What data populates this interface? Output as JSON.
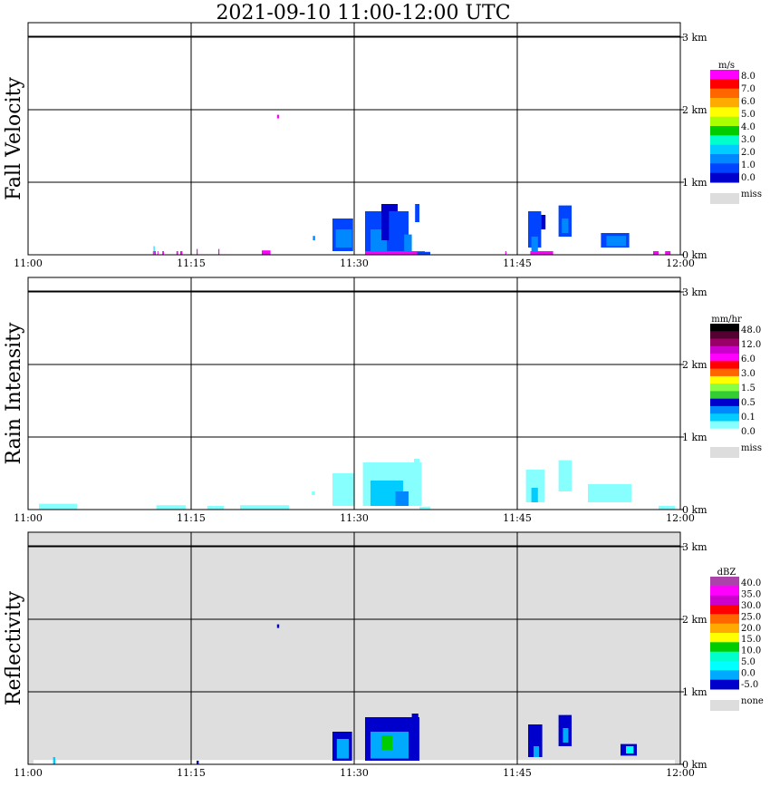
{
  "title": "2021-09-10   11:00-12:00 UTC",
  "x_axis": {
    "ticks": [
      "11:00",
      "11:15",
      "11:30",
      "11:45",
      "12:00"
    ],
    "range": [
      "11:00",
      "12:00"
    ]
  },
  "y_axis": {
    "ticks": [
      "0 km",
      "1 km",
      "2 km",
      "3 km"
    ],
    "range_km": [
      0,
      3.2
    ]
  },
  "colors": {
    "axis": "#000000",
    "reflectivity_background": "#dedede",
    "miss": "#dddddd"
  },
  "chart_data": [
    {
      "type": "heatmap",
      "title": "Fall Velocity",
      "ylabel": "Fall Velocity",
      "background": "#ffffff",
      "grid": true,
      "colorbar": {
        "unit": "m/s",
        "labels": [
          "8.0",
          "7.0",
          "6.0",
          "5.0",
          "4.0",
          "3.0",
          "2.0",
          "1.0",
          "0.0"
        ],
        "colors": [
          "#ff00ff",
          "#ff0000",
          "#ff6600",
          "#ffaa00",
          "#ffff00",
          "#aaff00",
          "#00cc00",
          "#00ffcc",
          "#00ccff",
          "#0088ff",
          "#0044ff",
          "#0000cc"
        ],
        "missing_label": "miss",
        "missing_color": "#dddddd"
      },
      "blobs": [
        {
          "t": [
            11.48,
            11.55
          ],
          "h": [
            0.0,
            0.05
          ],
          "color": "#ff00ff"
        },
        {
          "t": [
            11.55,
            11.6
          ],
          "h": [
            0.02,
            0.12
          ],
          "color": "#00ccff"
        },
        {
          "t": [
            11.6,
            11.75
          ],
          "h": [
            0.0,
            0.05
          ],
          "color": "#ff00ff"
        },
        {
          "t": [
            11.9,
            11.97
          ],
          "h": [
            0.0,
            0.05
          ],
          "color": "#ff00ff"
        },
        {
          "t": [
            12.35,
            12.5
          ],
          "h": [
            0.0,
            0.05
          ],
          "color": "#ff00ff"
        },
        {
          "t": [
            13.65,
            13.8
          ],
          "h": [
            0.0,
            0.05
          ],
          "color": "#ff00ff"
        },
        {
          "t": [
            14.0,
            14.2
          ],
          "h": [
            0.0,
            0.05
          ],
          "color": "#ff00ff"
        },
        {
          "t": [
            15.5,
            15.6
          ],
          "h": [
            0.0,
            0.08
          ],
          "color": "#ff00ff"
        },
        {
          "t": [
            17.5,
            17.6
          ],
          "h": [
            0.0,
            0.08
          ],
          "color": "#ff00ff"
        },
        {
          "t": [
            21.5,
            22.3
          ],
          "h": [
            0.0,
            0.06
          ],
          "color": "#ff00ff"
        },
        {
          "t": [
            22.9,
            23.1
          ],
          "h": [
            1.88,
            1.93
          ],
          "color": "#ff00ff"
        },
        {
          "t": [
            26.2,
            26.4
          ],
          "h": [
            0.2,
            0.26
          ],
          "color": "#0088ff"
        },
        {
          "t": [
            28.0,
            29.9
          ],
          "h": [
            0.05,
            0.5
          ],
          "color": "#0044ff"
        },
        {
          "t": [
            28.3,
            29.8
          ],
          "h": [
            0.1,
            0.35
          ],
          "color": "#0088ff"
        },
        {
          "t": [
            31.0,
            33.5
          ],
          "h": [
            0.05,
            0.6
          ],
          "color": "#0044ff"
        },
        {
          "t": [
            31.5,
            33.0
          ],
          "h": [
            0.05,
            0.35
          ],
          "color": "#0088ff"
        },
        {
          "t": [
            32.5,
            34.0
          ],
          "h": [
            0.2,
            0.7
          ],
          "color": "#0000cc"
        },
        {
          "t": [
            33.2,
            35.0
          ],
          "h": [
            0.05,
            0.6
          ],
          "color": "#0044ff"
        },
        {
          "t": [
            34.6,
            35.3
          ],
          "h": [
            0.05,
            0.28
          ],
          "color": "#0088ff"
        },
        {
          "t": [
            35.6,
            36.0
          ],
          "h": [
            0.45,
            0.7
          ],
          "color": "#0044ff"
        },
        {
          "t": [
            31.0,
            36.5
          ],
          "h": [
            0.0,
            0.05
          ],
          "color": "#ff00ff"
        },
        {
          "t": [
            35.8,
            37.0
          ],
          "h": [
            0.0,
            0.04
          ],
          "color": "#0044ff"
        },
        {
          "t": [
            43.9,
            44.0
          ],
          "h": [
            0.0,
            0.05
          ],
          "color": "#ff00ff"
        },
        {
          "t": [
            46.0,
            47.2
          ],
          "h": [
            0.1,
            0.6
          ],
          "color": "#0044ff"
        },
        {
          "t": [
            46.3,
            46.9
          ],
          "h": [
            0.05,
            0.25
          ],
          "color": "#0088ff"
        },
        {
          "t": [
            47.2,
            47.6
          ],
          "h": [
            0.35,
            0.55
          ],
          "color": "#0000cc"
        },
        {
          "t": [
            48.8,
            50.0
          ],
          "h": [
            0.25,
            0.68
          ],
          "color": "#0044ff"
        },
        {
          "t": [
            49.1,
            49.7
          ],
          "h": [
            0.3,
            0.5
          ],
          "color": "#0088ff"
        },
        {
          "t": [
            46.2,
            48.3
          ],
          "h": [
            0.0,
            0.05
          ],
          "color": "#ff00ff"
        },
        {
          "t": [
            52.7,
            55.3
          ],
          "h": [
            0.1,
            0.3
          ],
          "color": "#0044ff"
        },
        {
          "t": [
            53.2,
            55.0
          ],
          "h": [
            0.12,
            0.26
          ],
          "color": "#0088ff"
        },
        {
          "t": [
            57.5,
            58.0
          ],
          "h": [
            0.0,
            0.05
          ],
          "color": "#ff00ff"
        },
        {
          "t": [
            58.6,
            59.1
          ],
          "h": [
            0.0,
            0.05
          ],
          "color": "#ff00ff"
        }
      ]
    },
    {
      "type": "heatmap",
      "title": "Rain Intensity",
      "ylabel": "Rain Intensity",
      "background": "#ffffff",
      "grid": true,
      "colorbar": {
        "unit": "mm/hr",
        "labels": [
          "48.0",
          "12.0",
          "6.0",
          "3.0",
          "1.5",
          "0.5",
          "0.1",
          "0.0"
        ],
        "colors": [
          "#000000",
          "#550033",
          "#990066",
          "#cc00cc",
          "#ff00ff",
          "#ff0000",
          "#ff6600",
          "#ffff00",
          "#88ff44",
          "#33cc33",
          "#0000cc",
          "#0088ff",
          "#00ccff",
          "#88ffff",
          "#ffffff"
        ],
        "missing_label": "miss",
        "missing_color": "#dddddd"
      },
      "blobs": [
        {
          "t": [
            1.0,
            4.5
          ],
          "h": [
            0.0,
            0.08
          ],
          "color": "#88ffff"
        },
        {
          "t": [
            11.8,
            14.5
          ],
          "h": [
            0.0,
            0.06
          ],
          "color": "#88ffff"
        },
        {
          "t": [
            16.5,
            18.0
          ],
          "h": [
            0.0,
            0.05
          ],
          "color": "#88ffff"
        },
        {
          "t": [
            19.5,
            24.0
          ],
          "h": [
            0.0,
            0.06
          ],
          "color": "#88ffff"
        },
        {
          "t": [
            26.1,
            26.4
          ],
          "h": [
            0.2,
            0.25
          ],
          "color": "#88ffff"
        },
        {
          "t": [
            28.0,
            30.0
          ],
          "h": [
            0.05,
            0.5
          ],
          "color": "#88ffff"
        },
        {
          "t": [
            30.8,
            36.2
          ],
          "h": [
            0.05,
            0.65
          ],
          "color": "#88ffff"
        },
        {
          "t": [
            31.5,
            34.5
          ],
          "h": [
            0.05,
            0.4
          ],
          "color": "#00ccff"
        },
        {
          "t": [
            33.8,
            35.0
          ],
          "h": [
            0.05,
            0.25
          ],
          "color": "#0088ff"
        },
        {
          "t": [
            35.5,
            36.0
          ],
          "h": [
            0.45,
            0.7
          ],
          "color": "#88ffff"
        },
        {
          "t": [
            36.0,
            37.0
          ],
          "h": [
            0.0,
            0.04
          ],
          "color": "#88ffff"
        },
        {
          "t": [
            45.8,
            47.5
          ],
          "h": [
            0.1,
            0.55
          ],
          "color": "#88ffff"
        },
        {
          "t": [
            46.3,
            46.9
          ],
          "h": [
            0.1,
            0.3
          ],
          "color": "#00ccff"
        },
        {
          "t": [
            48.8,
            50.0
          ],
          "h": [
            0.25,
            0.68
          ],
          "color": "#88ffff"
        },
        {
          "t": [
            51.5,
            55.5
          ],
          "h": [
            0.1,
            0.35
          ],
          "color": "#88ffff"
        },
        {
          "t": [
            58.0,
            59.5
          ],
          "h": [
            0.0,
            0.05
          ],
          "color": "#88ffff"
        }
      ]
    },
    {
      "type": "heatmap",
      "title": "Reflectivity",
      "ylabel": "Reflectivity",
      "background": "#dedede",
      "grid": true,
      "colorbar": {
        "unit": "dBZ",
        "labels": [
          "40.0",
          "35.0",
          "30.0",
          "25.0",
          "20.0",
          "15.0",
          "10.0",
          "5.0",
          "0.0",
          "-5.0"
        ],
        "colors": [
          "#aa44aa",
          "#ff00ff",
          "#cc00cc",
          "#ff0000",
          "#ff6600",
          "#ffaa00",
          "#ffff00",
          "#00cc00",
          "#00ffcc",
          "#00ffff",
          "#00aaff",
          "#0000cc"
        ],
        "missing_label": "none",
        "missing_color": "#dddddd"
      },
      "blobs": [
        {
          "t": [
            0.5,
            59.5
          ],
          "h": [
            0.0,
            0.06
          ],
          "color": "#ffffff"
        },
        {
          "t": [
            2.3,
            2.5
          ],
          "h": [
            0.0,
            0.1
          ],
          "color": "#00ccff"
        },
        {
          "t": [
            15.5,
            15.7
          ],
          "h": [
            0.0,
            0.05
          ],
          "color": "#0000cc"
        },
        {
          "t": [
            22.9,
            23.1
          ],
          "h": [
            1.88,
            1.93
          ],
          "color": "#0000cc"
        },
        {
          "t": [
            28.0,
            29.8
          ],
          "h": [
            0.05,
            0.45
          ],
          "color": "#0000cc"
        },
        {
          "t": [
            28.4,
            29.5
          ],
          "h": [
            0.08,
            0.35
          ],
          "color": "#00aaff"
        },
        {
          "t": [
            31.0,
            36.0
          ],
          "h": [
            0.05,
            0.65
          ],
          "color": "#0000cc"
        },
        {
          "t": [
            31.5,
            35.0
          ],
          "h": [
            0.08,
            0.45
          ],
          "color": "#00aaff"
        },
        {
          "t": [
            32.5,
            33.5
          ],
          "h": [
            0.2,
            0.4
          ],
          "color": "#00cc00"
        },
        {
          "t": [
            35.3,
            35.9
          ],
          "h": [
            0.45,
            0.7
          ],
          "color": "#0000cc"
        },
        {
          "t": [
            46.0,
            47.3
          ],
          "h": [
            0.1,
            0.55
          ],
          "color": "#0000cc"
        },
        {
          "t": [
            46.5,
            47.0
          ],
          "h": [
            0.1,
            0.25
          ],
          "color": "#00aaff"
        },
        {
          "t": [
            48.8,
            50.0
          ],
          "h": [
            0.25,
            0.68
          ],
          "color": "#0000cc"
        },
        {
          "t": [
            49.2,
            49.7
          ],
          "h": [
            0.3,
            0.5
          ],
          "color": "#00aaff"
        },
        {
          "t": [
            54.5,
            56.0
          ],
          "h": [
            0.12,
            0.28
          ],
          "color": "#0000cc"
        },
        {
          "t": [
            55.0,
            55.7
          ],
          "h": [
            0.15,
            0.25
          ],
          "color": "#00ffff"
        }
      ]
    }
  ]
}
